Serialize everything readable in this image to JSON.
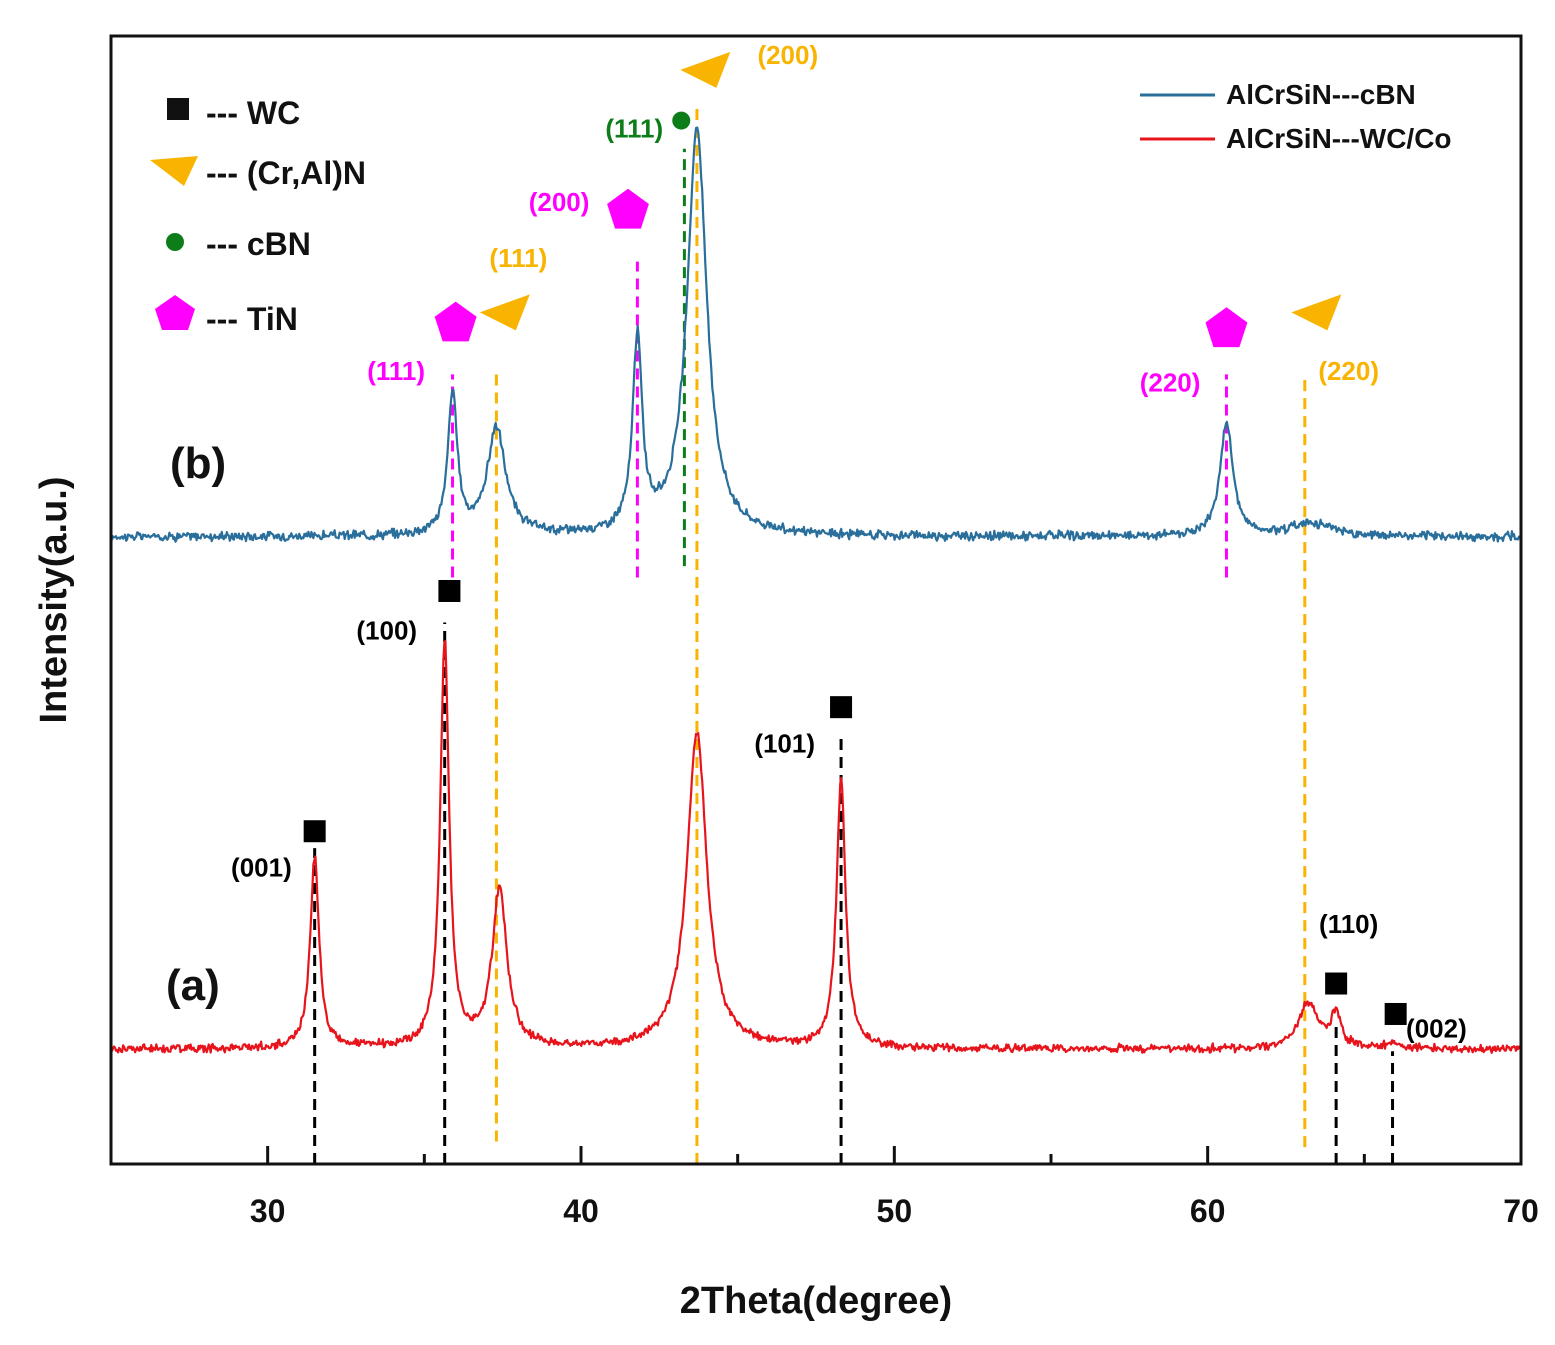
{
  "chart_data": {
    "type": "line",
    "title": "",
    "xlabel": "2Theta(degree)",
    "ylabel": "Intensity(a.u.)",
    "xlim": [
      25,
      70
    ],
    "ylim": [
      0,
      100
    ],
    "x_ticks": [
      30,
      40,
      50,
      60,
      70
    ],
    "x_minor_ticks": [
      35,
      45,
      55,
      65
    ],
    "x_tick_labels": [
      "30",
      "40",
      "50",
      "60",
      "70"
    ],
    "grid": false,
    "legend_position": "top-right",
    "series": [
      {
        "name": "AlCrSiN---cBN",
        "label": "(b)",
        "color": "#2a6f9b",
        "baseline": 55.6,
        "noise": 0.5,
        "peaks": [
          {
            "x": 35.9,
            "height": 12.5,
            "width": 0.18
          },
          {
            "x": 37.3,
            "height": 9.5,
            "width": 0.35
          },
          {
            "x": 41.8,
            "height": 17.0,
            "width": 0.18
          },
          {
            "x": 43.7,
            "height": 36.0,
            "width": 0.38
          },
          {
            "x": 60.6,
            "height": 10.0,
            "width": 0.25
          },
          {
            "x": 63.3,
            "height": 1.2,
            "width": 0.8
          }
        ]
      },
      {
        "name": "AlCrSiN---WC/Co",
        "label": "(a)",
        "color": "#e8141c",
        "baseline": 10.2,
        "noise": 0.45,
        "peaks": [
          {
            "x": 31.5,
            "height": 17.0,
            "width": 0.17
          },
          {
            "x": 35.65,
            "height": 36.0,
            "width": 0.17
          },
          {
            "x": 37.4,
            "height": 14.0,
            "width": 0.28
          },
          {
            "x": 43.7,
            "height": 28.0,
            "width": 0.38
          },
          {
            "x": 48.3,
            "height": 24.0,
            "width": 0.17
          },
          {
            "x": 63.2,
            "height": 4.0,
            "width": 0.35
          },
          {
            "x": 64.1,
            "height": 3.0,
            "width": 0.2
          },
          {
            "x": 65.9,
            "height": 0.6,
            "width": 0.2
          }
        ]
      }
    ],
    "phase_legend": [
      {
        "symbol": "square",
        "color": "#000000",
        "label": "--- WC"
      },
      {
        "symbol": "triangle",
        "color": "#f8b400",
        "label": "--- (Cr,Al)N"
      },
      {
        "symbol": "circle",
        "color": "#0d7d1a",
        "label": "--- cBN"
      },
      {
        "symbol": "pentagon",
        "color": "#ff00ff",
        "label": "--- TiN"
      }
    ],
    "reference_lines": [
      {
        "x": 31.5,
        "color": "#000000",
        "y_from": 0,
        "y_to": 28
      },
      {
        "x": 35.65,
        "color": "#000000",
        "y_from": 0,
        "y_to": 48
      },
      {
        "x": 48.3,
        "color": "#000000",
        "y_from": 0,
        "y_to": 38
      },
      {
        "x": 64.1,
        "color": "#000000",
        "y_from": 0,
        "y_to": 12.5
      },
      {
        "x": 65.9,
        "color": "#000000",
        "y_from": 0,
        "y_to": 10
      },
      {
        "x": 37.3,
        "color": "#f8b400",
        "y_from": 2,
        "y_to": 70
      },
      {
        "x": 43.7,
        "color": "#f8b400",
        "y_from": 0,
        "y_to": 94
      },
      {
        "x": 63.1,
        "color": "#f8b400",
        "y_from": 1.5,
        "y_to": 70
      },
      {
        "x": 35.9,
        "color": "#ff00ff",
        "y_from": 52,
        "y_to": 70
      },
      {
        "x": 41.8,
        "color": "#ff00ff",
        "y_from": 52,
        "y_to": 80
      },
      {
        "x": 60.6,
        "color": "#ff00ff",
        "y_from": 52,
        "y_to": 70
      },
      {
        "x": 43.3,
        "color": "#0d7d1a",
        "y_from": 53,
        "y_to": 90
      }
    ],
    "peak_markers": [
      {
        "symbol": "square",
        "color": "#000000",
        "x": 31.5,
        "y": 29.5
      },
      {
        "symbol": "square",
        "color": "#000000",
        "x": 35.8,
        "y": 50.8
      },
      {
        "symbol": "square",
        "color": "#000000",
        "x": 48.3,
        "y": 40.5
      },
      {
        "symbol": "square",
        "color": "#000000",
        "x": 64.1,
        "y": 16.0
      },
      {
        "symbol": "square",
        "color": "#000000",
        "x": 66.0,
        "y": 13.3
      },
      {
        "symbol": "pentagon",
        "color": "#ff00ff",
        "x": 36.0,
        "y": 74.5
      },
      {
        "symbol": "pentagon",
        "color": "#ff00ff",
        "x": 41.5,
        "y": 84.5
      },
      {
        "symbol": "pentagon",
        "color": "#ff00ff",
        "x": 60.6,
        "y": 74.0
      },
      {
        "symbol": "triangle",
        "color": "#f8b400",
        "x": 37.6,
        "y": 75.5
      },
      {
        "symbol": "triangle",
        "color": "#f8b400",
        "x": 44.0,
        "y": 97.0
      },
      {
        "symbol": "triangle",
        "color": "#f8b400",
        "x": 63.5,
        "y": 75.5
      },
      {
        "symbol": "circle",
        "color": "#0d7d1a",
        "x": 43.2,
        "y": 92.5
      }
    ],
    "annotations": [
      {
        "text": "(001)",
        "color": "#000000",
        "x": 29.8,
        "y": 25.5
      },
      {
        "text": "(100)",
        "color": "#000000",
        "x": 33.8,
        "y": 46.5
      },
      {
        "text": "(101)",
        "color": "#000000",
        "x": 46.5,
        "y": 36.5
      },
      {
        "text": "(110)",
        "color": "#000000",
        "x": 64.5,
        "y": 20.5
      },
      {
        "text": "(002)",
        "color": "#000000",
        "x": 67.3,
        "y": 11.2
      },
      {
        "text": "(111)",
        "color": "#ff00ff",
        "x": 34.1,
        "y": 69.5
      },
      {
        "text": "(200)",
        "color": "#ff00ff",
        "x": 39.3,
        "y": 84.5
      },
      {
        "text": "(220)",
        "color": "#ff00ff",
        "x": 58.8,
        "y": 68.5
      },
      {
        "text": "(111)",
        "color": "#f8b400",
        "x": 38.0,
        "y": 79.5
      },
      {
        "text": "(200)",
        "color": "#f8b400",
        "x": 46.6,
        "y": 97.5
      },
      {
        "text": "(220)",
        "color": "#f8b400",
        "x": 64.5,
        "y": 69.5
      },
      {
        "text": "(111)",
        "color": "#0d7d1a",
        "x": 41.7,
        "y": 91.0
      }
    ]
  }
}
